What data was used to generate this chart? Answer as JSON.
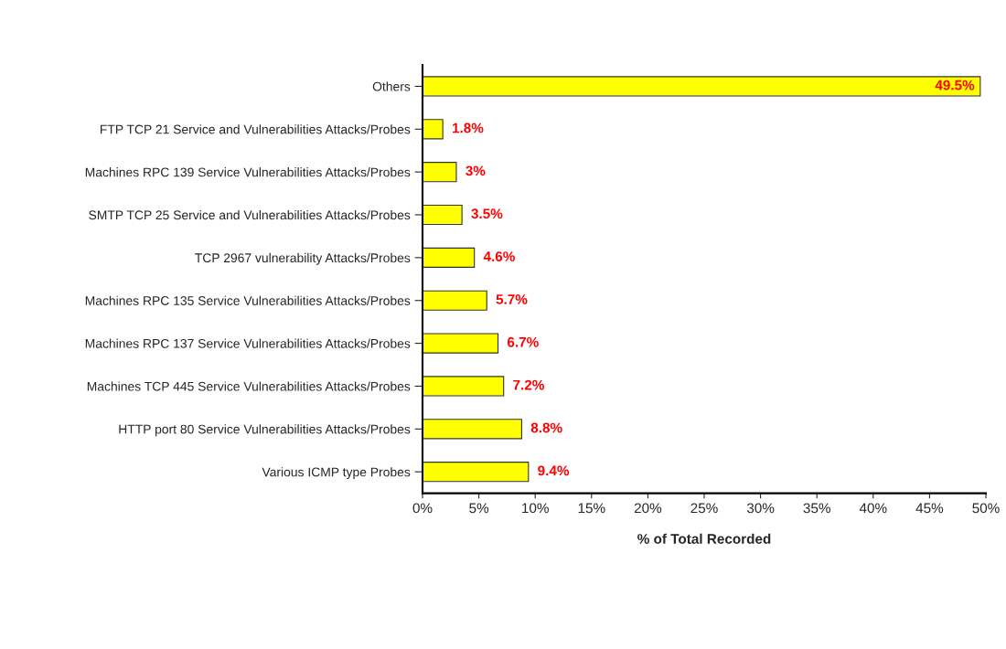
{
  "chart_data": {
    "type": "bar",
    "orientation": "horizontal",
    "categories": [
      "Others",
      "FTP TCP 21 Service and Vulnerabilities Attacks/Probes",
      "Machines RPC 139 Service Vulnerabilities Attacks/Probes",
      "SMTP TCP 25 Service and Vulnerabilities Attacks/Probes",
      "TCP 2967 vulnerability Attacks/Probes",
      "Machines RPC 135 Service Vulnerabilities Attacks/Probes",
      "Machines RPC 137 Service Vulnerabilities Attacks/Probes",
      "Machines TCP 445 Service Vulnerabilities Attacks/Probes",
      "HTTP port 80 Service Vulnerabilities Attacks/Probes",
      "Various ICMP type Probes"
    ],
    "values": [
      49.5,
      1.8,
      3,
      3.5,
      4.6,
      5.7,
      6.7,
      7.2,
      8.8,
      9.4
    ],
    "value_labels": [
      "49.5%",
      "1.8%",
      "3%",
      "3.5%",
      "4.6%",
      "5.7%",
      "6.7%",
      "7.2%",
      "8.8%",
      "9.4%"
    ],
    "color": "#ffff00",
    "xlabel": "% of Total Recorded",
    "xlim": [
      0,
      50
    ],
    "xticks": [
      {
        "value": 0,
        "label": "0%"
      },
      {
        "value": 5,
        "label": "5%"
      },
      {
        "value": 10,
        "label": "10%"
      },
      {
        "value": 15,
        "label": "15%"
      },
      {
        "value": 20,
        "label": "20%"
      },
      {
        "value": 25,
        "label": "25%"
      },
      {
        "value": 30,
        "label": "30%"
      },
      {
        "value": 35,
        "label": "35%"
      },
      {
        "value": 40,
        "label": "40%"
      },
      {
        "value": 45,
        "label": "45%"
      },
      {
        "value": 50,
        "label": "50%"
      }
    ],
    "grid": false,
    "legend": false
  }
}
